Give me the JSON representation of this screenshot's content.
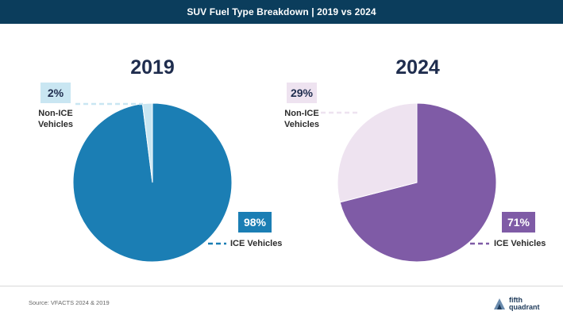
{
  "header": {
    "title": "SUV Fuel Type Breakdown | 2019 vs 2024"
  },
  "chart_data": [
    {
      "type": "pie",
      "title": "2019",
      "slices": [
        {
          "label": "Non-ICE Vehicles",
          "value": 2,
          "value_label": "2%",
          "color": "#c9e6f2"
        },
        {
          "label": "ICE Vehicles",
          "value": 98,
          "value_label": "98%",
          "color": "#1b7eb4"
        }
      ]
    },
    {
      "type": "pie",
      "title": "2024",
      "slices": [
        {
          "label": "Non-ICE Vehicles",
          "value": 29,
          "value_label": "29%",
          "color": "#eee3f0"
        },
        {
          "label": "ICE Vehicles",
          "value": 71,
          "value_label": "71%",
          "color": "#7f5ba6"
        }
      ]
    }
  ],
  "labels": {
    "non_ice_line1": "Non-ICE",
    "non_ice_line2": "Vehicles"
  },
  "footer": {
    "source": "Source: VFACTS 2024 & 2019",
    "logo_line1": "fifth",
    "logo_line2": "quadrant"
  },
  "colors": {
    "banner": "#0b3d5c",
    "ice_2019": "#1b7eb4",
    "non_ice_2019": "#c9e6f2",
    "ice_2024": "#7f5ba6",
    "non_ice_2024": "#eee3f0"
  }
}
